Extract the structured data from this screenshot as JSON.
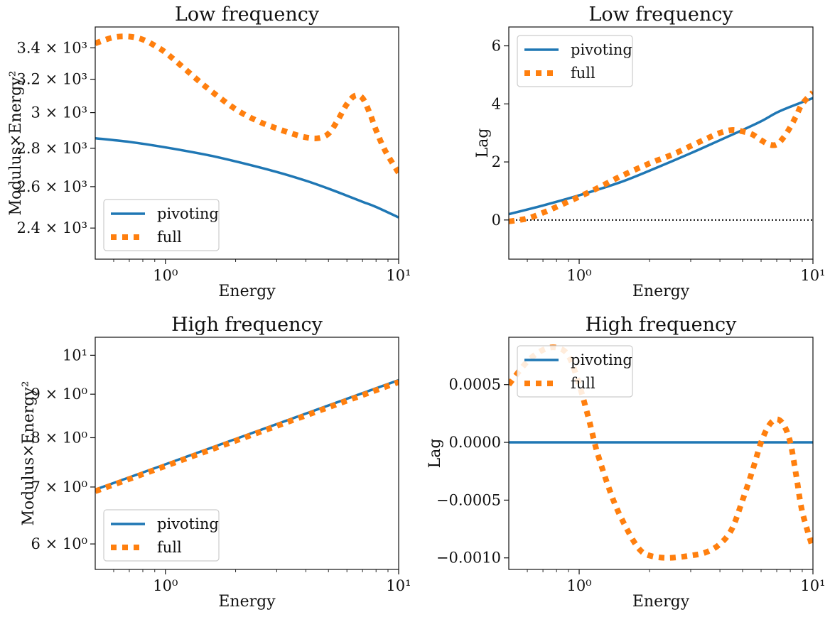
{
  "chart_data": [
    {
      "type": "line",
      "title": "Low frequency",
      "xlabel": "Energy",
      "ylabel": "Modulus×Energy²",
      "xscale": "log",
      "yscale": "log",
      "xlim": [
        0.5,
        10
      ],
      "ylim": [
        2260,
        3540
      ],
      "xticks": [
        {
          "value": 1,
          "label": "10⁰"
        },
        {
          "value": 10,
          "label": "10¹"
        }
      ],
      "yticks": [
        {
          "value": 2400,
          "label": "2.4 × 10³"
        },
        {
          "value": 2600,
          "label": "2.6 × 10³"
        },
        {
          "value": 2800,
          "label": "2.8 × 10³"
        },
        {
          "value": 3000,
          "label": "3 × 10³"
        },
        {
          "value": 3200,
          "label": "3.2 × 10³"
        },
        {
          "value": 3400,
          "label": "3.4 × 10³"
        }
      ],
      "legend": "lower-left",
      "series": [
        {
          "name": "pivoting",
          "style": "solid",
          "color": "#1f77b4",
          "x": [
            0.5,
            0.7,
            1.0,
            1.5,
            2.0,
            3.0,
            4.0,
            5.0,
            6.0,
            7.0,
            8.0,
            10.0
          ],
          "y": [
            2855,
            2835,
            2805,
            2765,
            2730,
            2675,
            2630,
            2590,
            2555,
            2525,
            2500,
            2450
          ]
        },
        {
          "name": "full",
          "style": "dotted",
          "color": "#ff7f0e",
          "x": [
            0.5,
            0.6,
            0.7,
            0.8,
            0.9,
            1.0,
            1.2,
            1.5,
            2.0,
            2.5,
            3.0,
            3.5,
            4.0,
            4.5,
            5.0,
            5.5,
            6.0,
            6.5,
            7.0,
            7.5,
            8.0,
            8.5,
            9.0,
            10.0
          ],
          "y": [
            3430,
            3470,
            3475,
            3455,
            3415,
            3370,
            3270,
            3150,
            3020,
            2950,
            2910,
            2880,
            2860,
            2855,
            2880,
            2960,
            3050,
            3100,
            3085,
            3000,
            2900,
            2820,
            2760,
            2670
          ]
        }
      ]
    },
    {
      "type": "line",
      "title": "Low frequency",
      "xlabel": "Energy",
      "ylabel": "Lag",
      "xscale": "log",
      "yscale": "linear",
      "xlim": [
        0.5,
        10
      ],
      "ylim": [
        -1.35,
        6.65
      ],
      "xticks": [
        {
          "value": 1,
          "label": "10⁰"
        },
        {
          "value": 10,
          "label": "10¹"
        }
      ],
      "yticks": [
        {
          "value": 0,
          "label": "0"
        },
        {
          "value": 2,
          "label": "2"
        },
        {
          "value": 4,
          "label": "4"
        },
        {
          "value": 6,
          "label": "6"
        }
      ],
      "legend": "upper-left",
      "hline": {
        "y": 0,
        "style": "dotted",
        "color": "#111111"
      },
      "series": [
        {
          "name": "pivoting",
          "style": "solid",
          "color": "#1f77b4",
          "x": [
            0.5,
            0.7,
            1.0,
            1.5,
            2.0,
            3.0,
            4.0,
            5.0,
            6.0,
            7.0,
            8.0,
            10.0
          ],
          "y": [
            0.2,
            0.5,
            0.85,
            1.3,
            1.7,
            2.3,
            2.75,
            3.1,
            3.4,
            3.7,
            3.9,
            4.2
          ]
        },
        {
          "name": "full",
          "style": "dotted",
          "color": "#ff7f0e",
          "x": [
            0.5,
            0.6,
            0.7,
            0.8,
            1.0,
            1.2,
            1.5,
            2.0,
            2.5,
            3.0,
            3.5,
            4.0,
            4.5,
            5.0,
            5.5,
            6.0,
            6.5,
            7.0,
            7.5,
            8.0,
            8.5,
            9.0,
            10.0
          ],
          "y": [
            -0.05,
            0.05,
            0.25,
            0.45,
            0.8,
            1.1,
            1.5,
            1.95,
            2.25,
            2.55,
            2.8,
            3.0,
            3.1,
            3.05,
            2.95,
            2.75,
            2.6,
            2.6,
            2.85,
            3.2,
            3.6,
            4.0,
            4.4
          ]
        }
      ]
    },
    {
      "type": "line",
      "title": "High frequency",
      "xlabel": "Energy",
      "ylabel": "Modulus×Energy²",
      "xscale": "log",
      "yscale": "log",
      "xlim": [
        0.5,
        10
      ],
      "ylim": [
        5.6,
        10.5
      ],
      "xticks": [
        {
          "value": 1,
          "label": "10⁰"
        },
        {
          "value": 10,
          "label": "10¹"
        }
      ],
      "yticks": [
        {
          "value": 6,
          "label": "6 × 10⁰"
        },
        {
          "value": 7,
          "label": "7 × 10⁰"
        },
        {
          "value": 8,
          "label": "8 × 10⁰"
        },
        {
          "value": 9,
          "label": "9 × 10⁰"
        },
        {
          "value": 10,
          "label": "10¹"
        }
      ],
      "legend": "lower-left",
      "series": [
        {
          "name": "pivoting",
          "style": "solid",
          "color": "#1f77b4",
          "x": [
            0.5,
            10.0
          ],
          "y": [
            6.95,
            9.35
          ]
        },
        {
          "name": "full",
          "style": "dotted",
          "color": "#ff7f0e",
          "x": [
            0.5,
            10.0
          ],
          "y": [
            6.92,
            9.3
          ]
        }
      ]
    },
    {
      "type": "line",
      "title": "High frequency",
      "xlabel": "Energy",
      "ylabel": "Lag",
      "xscale": "log",
      "yscale": "linear",
      "xlim": [
        0.5,
        10
      ],
      "ylim": [
        -0.0011,
        0.00091
      ],
      "xticks": [
        {
          "value": 1,
          "label": "10⁰"
        },
        {
          "value": 10,
          "label": "10¹"
        }
      ],
      "yticks": [
        {
          "value": 0.0005,
          "label": "0.0005"
        },
        {
          "value": 0.0,
          "label": "0.0000"
        },
        {
          "value": -0.0005,
          "label": "−0.0005"
        },
        {
          "value": -0.001,
          "label": "−0.0010"
        }
      ],
      "legend": "upper-left",
      "series": [
        {
          "name": "pivoting",
          "style": "solid",
          "color": "#1f77b4",
          "x": [
            0.5,
            10.0
          ],
          "y": [
            0.0,
            0.0
          ]
        },
        {
          "name": "full",
          "style": "dotted",
          "color": "#ff7f0e",
          "x": [
            0.5,
            0.6,
            0.7,
            0.8,
            0.9,
            1.0,
            1.1,
            1.2,
            1.4,
            1.6,
            1.8,
            2.0,
            2.4,
            3.0,
            3.5,
            4.0,
            4.5,
            5.0,
            5.5,
            6.0,
            6.5,
            7.0,
            7.5,
            8.0,
            8.5,
            9.0,
            10.0
          ],
          "y": [
            0.0005,
            0.0007,
            0.0008,
            0.00082,
            0.00075,
            0.0005,
            0.0002,
            -0.0001,
            -0.0005,
            -0.00075,
            -0.00092,
            -0.00098,
            -0.001,
            -0.00098,
            -0.00095,
            -0.00088,
            -0.00075,
            -0.0005,
            -0.00025,
            0.0,
            0.00015,
            0.0002,
            0.00015,
            0.0,
            -0.0003,
            -0.0006,
            -0.00092
          ]
        }
      ]
    }
  ]
}
